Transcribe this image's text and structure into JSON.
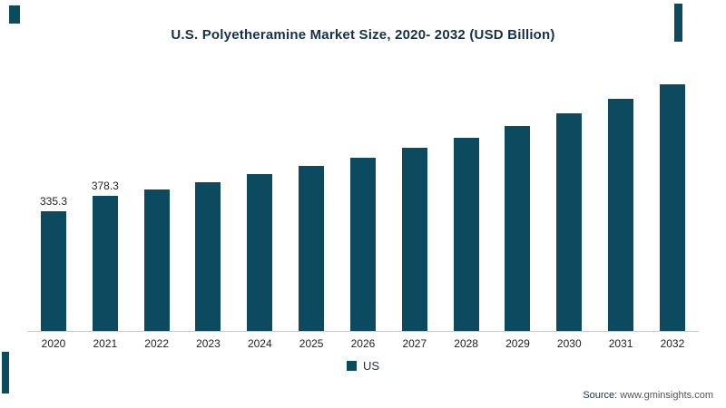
{
  "page": {
    "background": "#ffffff",
    "accent_color": "#0c4a60"
  },
  "chart_data": {
    "type": "bar",
    "title": "U.S. Polyetheramine Market Size, 2020- 2032 (USD Billion)",
    "categories": [
      "2020",
      "2021",
      "2022",
      "2023",
      "2024",
      "2025",
      "2026",
      "2027",
      "2028",
      "2029",
      "2030",
      "2031",
      "2032"
    ],
    "series": [
      {
        "name": "US",
        "values": [
          335.3,
          378.3,
          396.8,
          416.5,
          437.9,
          460.5,
          485.4,
          511.8,
          541.2,
          574.1,
          609.8,
          648.5,
          690.0
        ]
      }
    ],
    "value_labels": [
      "335.3",
      "378.3",
      "",
      "",
      "",
      "",
      "",
      "",
      "",
      "",
      "",
      "",
      ""
    ],
    "bar_color": "#0c4a60",
    "xlabel": "",
    "ylabel": "",
    "ylim": [
      0,
      700
    ],
    "grid": false,
    "legend": {
      "position": "bottom",
      "entries": [
        "US"
      ]
    }
  },
  "legend": {
    "label": "US"
  },
  "footer": {
    "source_label": "Source:",
    "source_url": "www.gminsights.com"
  }
}
